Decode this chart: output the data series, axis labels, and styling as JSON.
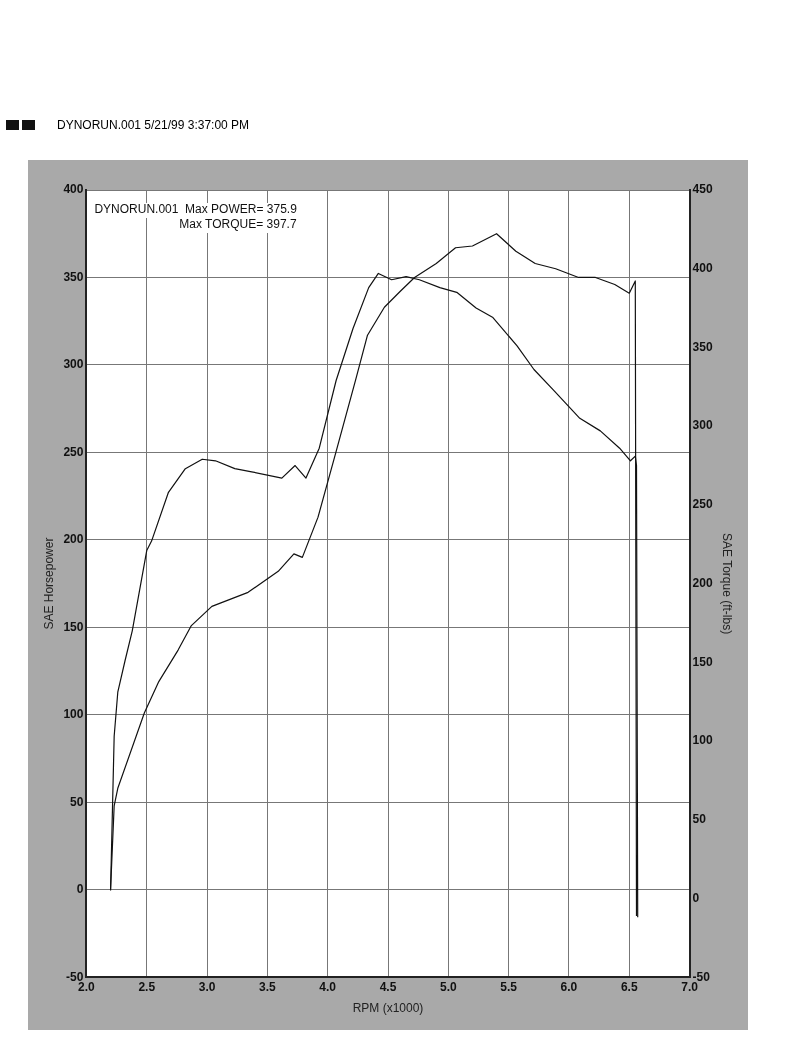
{
  "chart_data": {
    "type": "line",
    "subtitle": "DYNORUN.001 5/21/99 3:37:00 PM",
    "xlabel": "RPM (x1000)",
    "ylabel": "SAE Horsepower",
    "y2label": "SAE Torque (ft-lbs)",
    "annotations": [
      "DYNORUN.001  Max POWER= 375.9",
      "Max TORQUE= 397.7"
    ],
    "xlim": [
      2,
      7
    ],
    "xticks": [
      {
        "value": 2,
        "label": "2.0"
      },
      2.5,
      {
        "value": 3,
        "label": "3.0"
      },
      3.5,
      {
        "value": 4,
        "label": "4.0"
      },
      4.5,
      {
        "value": 5,
        "label": "5.0"
      },
      5.5,
      {
        "value": 6,
        "label": "6.0"
      },
      6.5,
      {
        "value": 7,
        "label": "7.0"
      }
    ],
    "ylim": [
      -50,
      400
    ],
    "yticks": [
      -50,
      0,
      50,
      100,
      150,
      200,
      250,
      300,
      350,
      400
    ],
    "y2lim": [
      -50,
      450
    ],
    "y2ticks": [
      -50,
      0,
      50,
      100,
      150,
      200,
      250,
      300,
      350,
      400,
      450
    ],
    "grid": true,
    "legend": false,
    "marker": "none",
    "line_style": "solid",
    "series": [
      {
        "color": "#111111",
        "x": [
          2.2,
          2.23,
          2.26,
          2.48,
          2.6,
          2.76,
          2.87,
          3.04,
          3.34,
          3.59,
          3.72,
          3.79,
          3.92,
          4.06,
          4.23,
          4.33,
          4.47,
          4.6,
          4.72,
          4.9,
          5.06,
          5.2,
          5.4,
          5.56,
          5.72,
          5.89,
          6.08,
          6.22,
          6.38,
          6.5,
          6.55,
          6.56
        ],
        "values": [
          0,
          48,
          58,
          101,
          119,
          137,
          151,
          162,
          170,
          182,
          192,
          190,
          213,
          248,
          291,
          317,
          333,
          342,
          350,
          358,
          367,
          368,
          375,
          365,
          358,
          355,
          350,
          350,
          346,
          341,
          348,
          -15
        ]
      },
      {
        "color": "#111111",
        "axis": "y2",
        "x": [
          2.2,
          2.23,
          2.26,
          2.32,
          2.38,
          2.5,
          2.54,
          2.68,
          2.82,
          2.96,
          3.07,
          3.23,
          3.37,
          3.62,
          3.73,
          3.82,
          3.93,
          4.07,
          4.21,
          4.34,
          4.42,
          4.53,
          4.65,
          4.76,
          4.93,
          5.07,
          5.23,
          5.37,
          5.57,
          5.71,
          5.87,
          6.09,
          6.26,
          6.42,
          6.51,
          6.55,
          6.56,
          6.57
        ],
        "values": [
          5,
          103,
          131,
          151,
          170,
          221,
          227,
          258,
          273,
          279,
          278,
          273,
          271,
          267,
          275,
          267,
          286,
          329,
          362,
          388,
          397,
          393,
          395,
          393,
          388,
          385,
          375,
          369,
          351,
          336,
          323,
          305,
          297,
          286,
          278,
          281,
          275,
          -12
        ]
      }
    ]
  }
}
